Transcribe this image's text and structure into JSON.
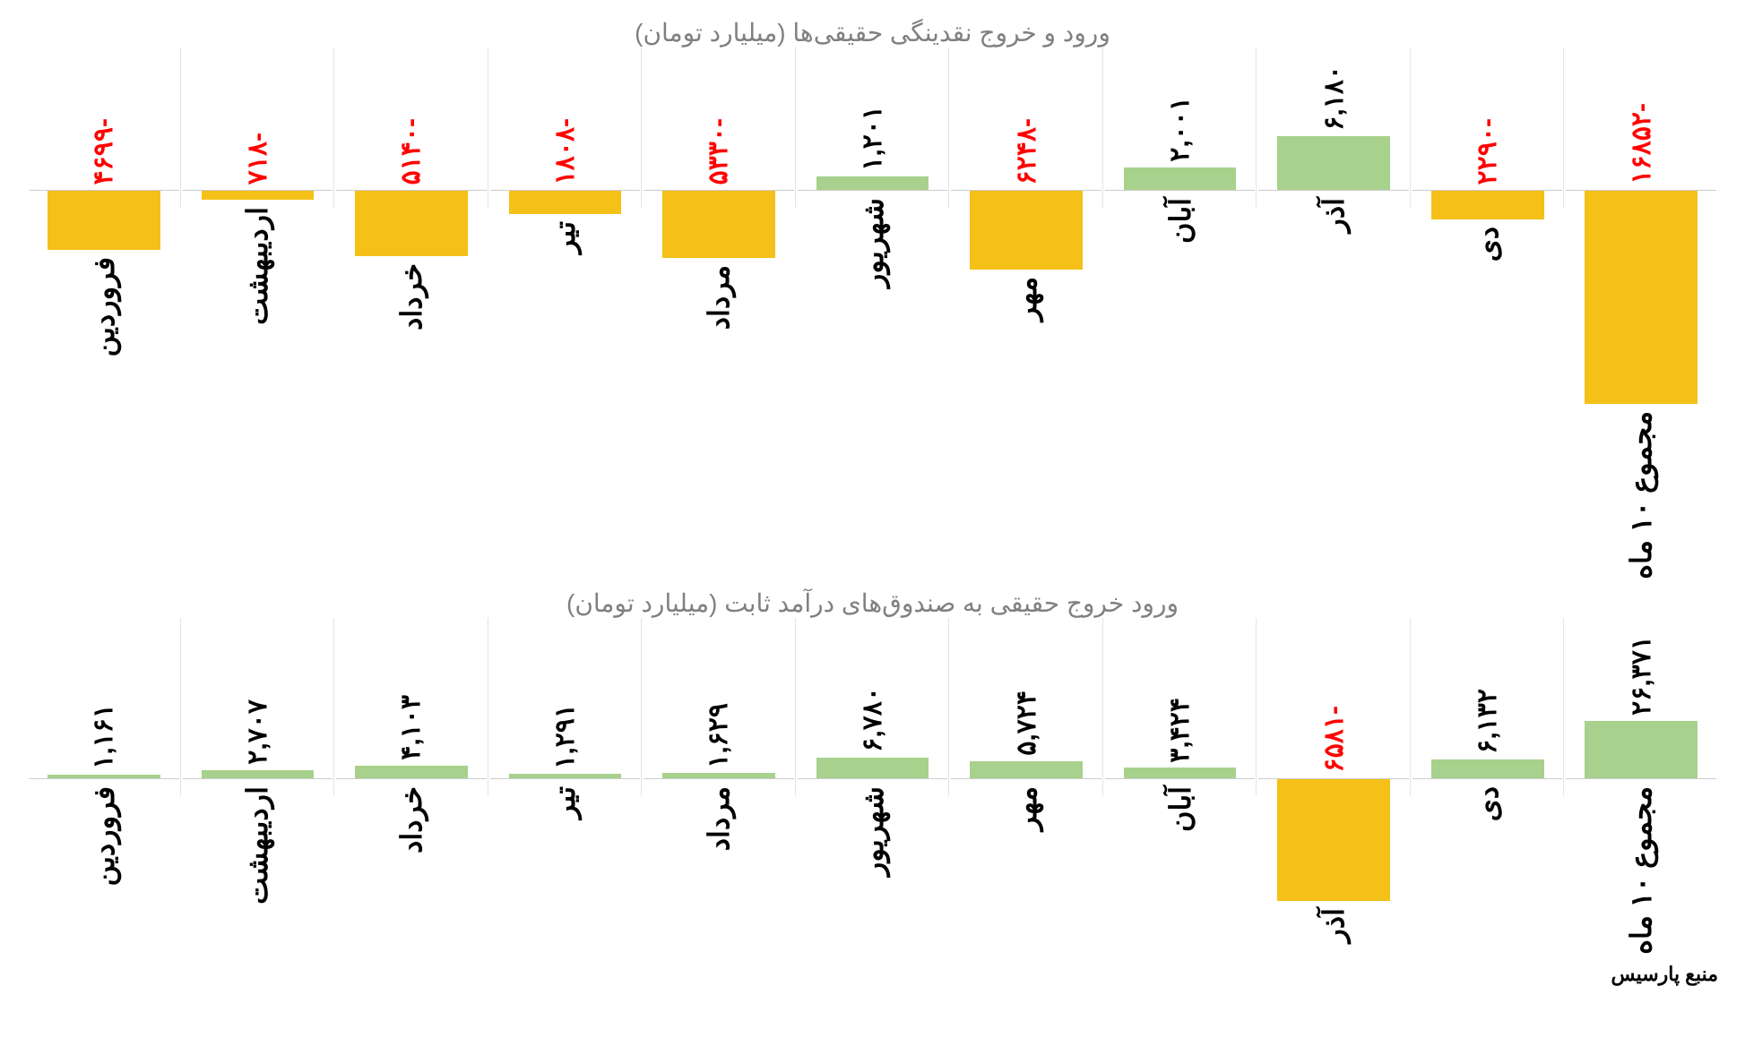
{
  "chart1": {
    "title": "ورود و خروج نقدینگی حقیقی‌ها (میلیارد تومان)",
    "type": "bar",
    "upper_zone_height": 140,
    "lower_zone_height": 280,
    "max_positive": 6180,
    "max_negative": 16852,
    "bar_color_positive": "#a7d18c",
    "bar_color_negative": "#f5c017",
    "label_color_positive": "#000000",
    "label_color_negative": "#ff0000",
    "font_size_value": 30,
    "font_size_category": 32,
    "bars": [
      {
        "category": "فروردین",
        "value": -4699,
        "display": "-۴۶۹۹"
      },
      {
        "category": "اردیبهشت",
        "value": -718,
        "display": "-۷۱۸"
      },
      {
        "category": "خرداد",
        "value": -5140,
        "display": "-۵۱۴۰"
      },
      {
        "category": "تیر",
        "value": -1808,
        "display": "-۱۸۰۸"
      },
      {
        "category": "مرداد",
        "value": -5330,
        "display": "-۵۳۳۰"
      },
      {
        "category": "شهریور",
        "value": 1201,
        "display": "۱,۲۰۱"
      },
      {
        "category": "مهر",
        "value": -6248,
        "display": "-۶۲۴۸"
      },
      {
        "category": "آبان",
        "value": 2001,
        "display": "۲,۰۰۱"
      },
      {
        "category": "آذر",
        "value": 6180,
        "display": "۶,۱۸۰"
      },
      {
        "category": "دی",
        "value": -2290,
        "display": "-۲۲۹۰"
      },
      {
        "category": "مجموع ۱۰ ماه",
        "value": -16852,
        "display": "-۱۶۸۵۲"
      }
    ]
  },
  "chart2": {
    "title": "ورود خروج حقیقی به صندوق‌های درآمد ثابت (میلیارد تومان)",
    "type": "bar",
    "upper_zone_height": 160,
    "lower_zone_height": 160,
    "max_positive": 26371,
    "max_negative": 6581,
    "bar_color_positive": "#a7d18c",
    "bar_color_negative": "#f5c017",
    "label_color_positive": "#000000",
    "label_color_negative": "#ff0000",
    "font_size_value": 30,
    "font_size_category": 32,
    "bars": [
      {
        "category": "فروردین",
        "value": 1161,
        "display": "۱,۱۶۱"
      },
      {
        "category": "اردیبهشت",
        "value": 2707,
        "display": "۲,۷۰۷"
      },
      {
        "category": "خرداد",
        "value": 4103,
        "display": "۴,۱۰۳"
      },
      {
        "category": "تیر",
        "value": 1291,
        "display": "۱,۲۹۱"
      },
      {
        "category": "مرداد",
        "value": 1629,
        "display": "۱,۶۲۹"
      },
      {
        "category": "شهریور",
        "value": 6780,
        "display": "۶,۷۸۰"
      },
      {
        "category": "مهر",
        "value": 5724,
        "display": "۵,۷۲۴"
      },
      {
        "category": "آبان",
        "value": 3424,
        "display": "۳,۴۲۴"
      },
      {
        "category": "آذر",
        "value": -6581,
        "display": "-۶۵۸۱"
      },
      {
        "category": "دی",
        "value": 6132,
        "display": "۶,۱۳۲"
      },
      {
        "category": "مجموع ۱۰ ماه",
        "value": 26371,
        "display": "۲۶,۳۷۱"
      }
    ]
  },
  "source": "منبع پارسیس"
}
